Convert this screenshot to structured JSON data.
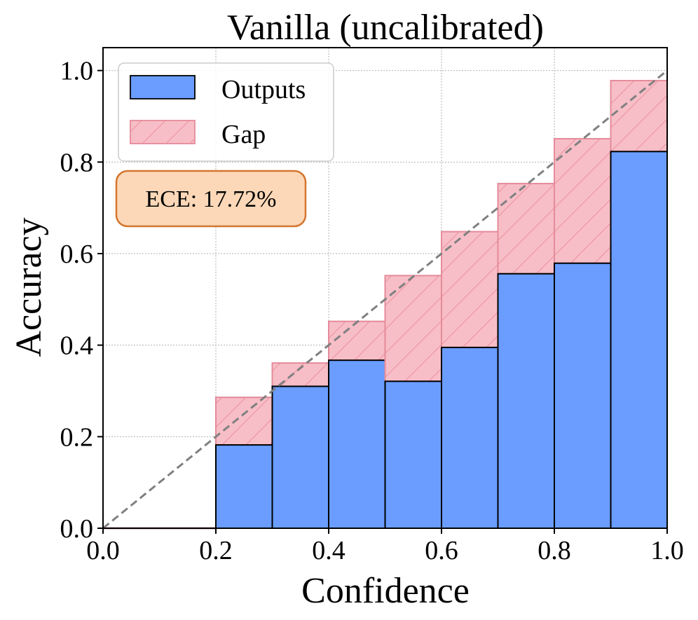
{
  "chart_data": {
    "type": "bar",
    "title": "Vanilla (uncalibrated)",
    "xlabel": "Confidence",
    "ylabel": "Accuracy",
    "xlim": [
      0,
      1
    ],
    "ylim": [
      0,
      1.05
    ],
    "xticks": [
      "0.0",
      "0.2",
      "0.4",
      "0.6",
      "0.8",
      "1.0"
    ],
    "yticks": [
      "0.0",
      "0.2",
      "0.4",
      "0.6",
      "0.8",
      "1.0"
    ],
    "grid": true,
    "legend_position": "top-left",
    "bin_edges": [
      0.0,
      0.1,
      0.2,
      0.3,
      0.4,
      0.5,
      0.6,
      0.7,
      0.8,
      0.9,
      1.0
    ],
    "series": [
      {
        "name": "Outputs",
        "values": [
          0,
          0,
          0.182,
          0.31,
          0.367,
          0.321,
          0.395,
          0.556,
          0.579,
          0.823
        ],
        "color": "#6a9dff"
      },
      {
        "name": "Gap",
        "values": [
          0,
          0,
          0.286,
          0.361,
          0.452,
          0.552,
          0.648,
          0.753,
          0.851,
          0.978
        ],
        "color": "#f7bec7",
        "hatch": "/"
      }
    ],
    "reference_line": {
      "style": "dashed",
      "from": [
        0,
        0
      ],
      "to": [
        1,
        1
      ],
      "color": "#808080"
    },
    "annotation": {
      "text": "ECE: 17.72%",
      "facecolor": "#fcd8b8",
      "edgecolor": "#d4762f"
    }
  }
}
